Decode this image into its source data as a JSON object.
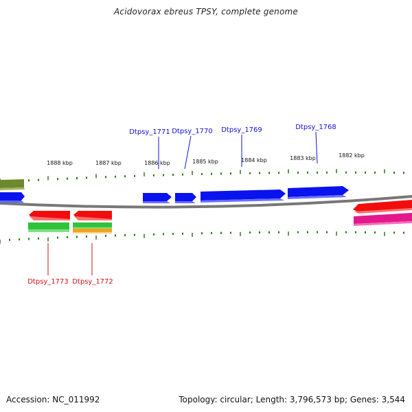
{
  "title": "Acidovorax ebreus TPSY, complete genome",
  "accession": "Accession: NC_011992",
  "summary": "Topology: circular; Length: 3,796,573 bp; Genes: 3,544",
  "colors": {
    "forward_gene": "#0a12ee",
    "reverse_gene": "#f20d0d",
    "green_feature": "#31c23c",
    "orange_feature": "#f5a11e",
    "magenta_feature": "#e3198b",
    "olive_feature": "#6c8a2d",
    "backbone": "#777777",
    "tick": "#247a18",
    "blue_label": "#1010d0",
    "red_label": "#d0101a"
  },
  "scale_labels": [
    "1888 kbp",
    "1887 kbp",
    "1886 kbp",
    "1885 kbp",
    "1884 kbp",
    "1883 kbp",
    "1882 kbp"
  ],
  "forward_gene_labels": [
    "Dtpsy_1771",
    "Dtpsy_1770",
    "Dtpsy_1769",
    "Dtpsy_1768"
  ],
  "reverse_gene_labels": [
    "Dtpsy_1773",
    "Dtpsy_1772"
  ]
}
